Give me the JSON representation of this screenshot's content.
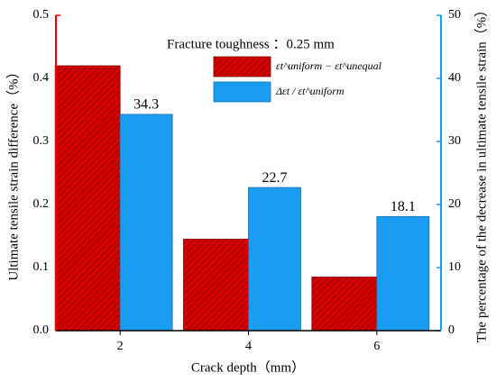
{
  "chart_data": {
    "type": "bar",
    "legend_title": "Fracture toughness ：0.25 mm",
    "xlabel": "Crack depth（mm）",
    "ylabel": "Ultimate tensile strain difference（%）",
    "y2label": "The percentage of the decrease in ultimate tensile strain（%）",
    "categories": [
      "2",
      "4",
      "6"
    ],
    "series": [
      {
        "name": "εt^uniform − εt^unequal",
        "color": "#d40000",
        "values": [
          0.42,
          0.145,
          0.085
        ]
      },
      {
        "name": "Δεt / εt^uniform",
        "color": "#1a9cf0",
        "values": [
          34.3,
          22.7,
          18.1
        ],
        "axis": "y2",
        "show_values": true
      }
    ],
    "ylim": [
      0,
      0.5
    ],
    "yticks": [
      {
        "value": 0,
        "label": "0.0"
      },
      0.1,
      0.2,
      0.3,
      0.4,
      0.5
    ],
    "y2lim": [
      0,
      50
    ],
    "y2ticks": [
      0,
      10,
      20,
      30,
      40,
      50
    ],
    "ycolor": "#e8000b",
    "y2color": "#1aa0e8"
  }
}
